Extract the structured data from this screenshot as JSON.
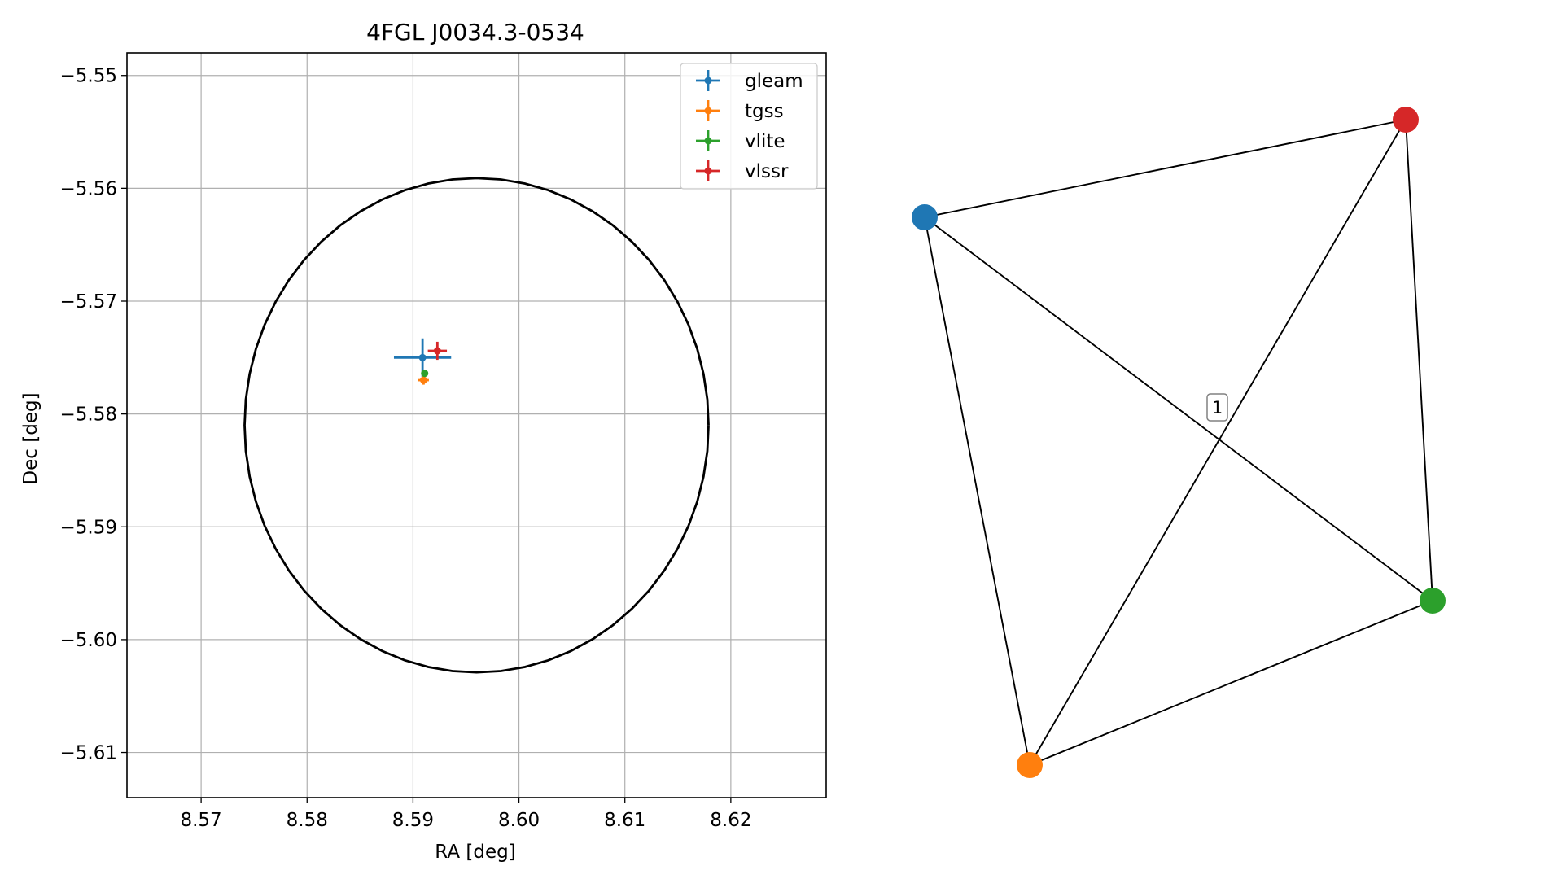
{
  "chart_data": [
    {
      "type": "scatter",
      "title": "4FGL J0034.3-0534",
      "xlabel": "RA [deg]",
      "ylabel": "Dec [deg]",
      "xlim": [
        8.563,
        8.629
      ],
      "ylim": [
        -5.614,
        -5.548
      ],
      "grid": true,
      "x_ticks": [
        8.57,
        8.58,
        8.59,
        8.6,
        8.61,
        8.62
      ],
      "x_tick_labels": [
        "8.57",
        "8.58",
        "8.59",
        "8.60",
        "8.61",
        "8.62"
      ],
      "y_ticks": [
        -5.55,
        -5.56,
        -5.57,
        -5.58,
        -5.59,
        -5.6,
        -5.61
      ],
      "y_tick_labels": [
        "−5.55",
        "−5.56",
        "−5.57",
        "−5.58",
        "−5.59",
        "−5.60",
        "−5.61"
      ],
      "legend_position": "upper right",
      "series": [
        {
          "name": "gleam",
          "color": "#1f77b4",
          "x": 8.5909,
          "y": -5.575,
          "xerr": 0.0027,
          "yerr": 0.0017
        },
        {
          "name": "tgss",
          "color": "#ff7f0e",
          "x": 8.591,
          "y": -5.577,
          "xerr": 0.0005,
          "yerr": 0.0004
        },
        {
          "name": "vlite",
          "color": "#2ca02c",
          "x": 8.5911,
          "y": -5.5764,
          "xerr": 0.0002,
          "yerr": 0.0001
        },
        {
          "name": "vlssr",
          "color": "#d62728",
          "x": 8.5923,
          "y": -5.5744,
          "xerr": 0.0009,
          "yerr": 0.0008
        }
      ],
      "circle": {
        "center": [
          8.596,
          -5.581
        ],
        "radius_deg": 0.0219,
        "color": "#000000"
      }
    },
    {
      "type": "network",
      "nodes": [
        {
          "id": "gleam",
          "color": "#1f77b4"
        },
        {
          "id": "tgss",
          "color": "#ff7f0e"
        },
        {
          "id": "vlite",
          "color": "#2ca02c"
        },
        {
          "id": "vlssr",
          "color": "#d62728"
        }
      ],
      "edges": [
        [
          "gleam",
          "vlssr"
        ],
        [
          "gleam",
          "vlite"
        ],
        [
          "gleam",
          "tgss"
        ],
        [
          "tgss",
          "vlssr"
        ],
        [
          "tgss",
          "vlite"
        ],
        [
          "vlite",
          "vlssr"
        ]
      ],
      "edge_label": "1"
    }
  ]
}
